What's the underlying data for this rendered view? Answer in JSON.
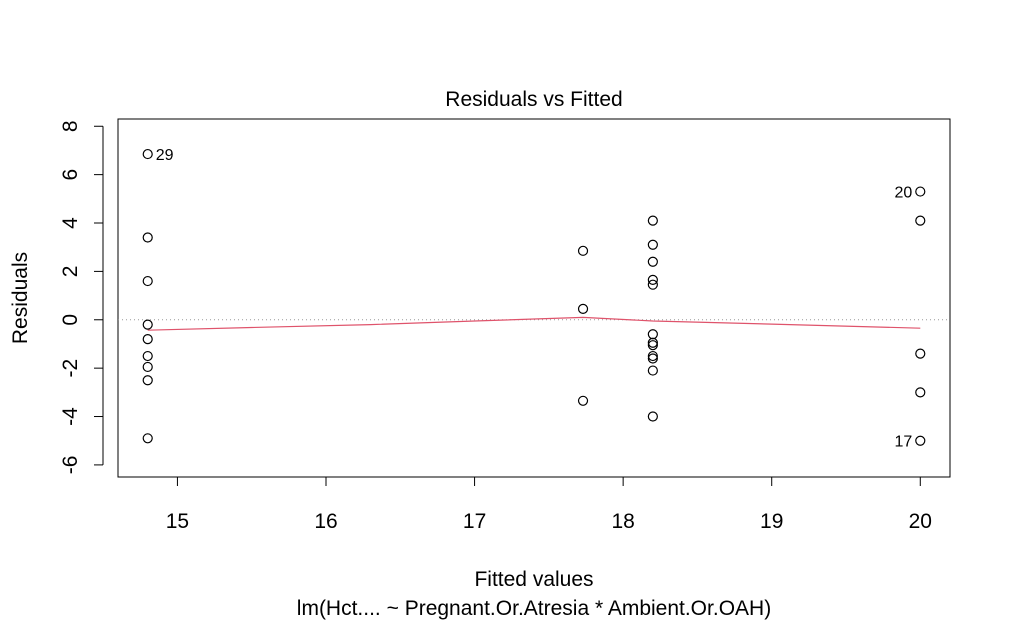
{
  "chart_data": {
    "type": "scatter",
    "title": "Residuals vs Fitted",
    "xlabel": "Fitted values",
    "subtitle": "lm(Hct.... ~ Pregnant.Or.Atresia * Ambient.Or.OAH)",
    "ylabel": "Residuals",
    "xlim": [
      14.6,
      20.2
    ],
    "ylim": [
      -6.5,
      8.3
    ],
    "x_ticks": [
      15,
      16,
      17,
      18,
      19,
      20
    ],
    "y_ticks": [
      -6,
      -4,
      -2,
      0,
      2,
      4,
      6,
      8
    ],
    "points": [
      {
        "x": 14.8,
        "y": 6.85,
        "label": "29"
      },
      {
        "x": 14.8,
        "y": 3.4
      },
      {
        "x": 14.8,
        "y": 1.6
      },
      {
        "x": 14.8,
        "y": -0.2
      },
      {
        "x": 14.8,
        "y": -0.8
      },
      {
        "x": 14.8,
        "y": -1.5
      },
      {
        "x": 14.8,
        "y": -1.95
      },
      {
        "x": 14.8,
        "y": -2.5
      },
      {
        "x": 14.8,
        "y": -4.9
      },
      {
        "x": 17.73,
        "y": 2.85
      },
      {
        "x": 17.73,
        "y": 0.45
      },
      {
        "x": 17.73,
        "y": -3.35
      },
      {
        "x": 18.2,
        "y": 4.1
      },
      {
        "x": 18.2,
        "y": 3.1
      },
      {
        "x": 18.2,
        "y": 2.4
      },
      {
        "x": 18.2,
        "y": 1.65
      },
      {
        "x": 18.2,
        "y": 1.45
      },
      {
        "x": 18.2,
        "y": -0.6
      },
      {
        "x": 18.2,
        "y": -0.95
      },
      {
        "x": 18.2,
        "y": -1.05
      },
      {
        "x": 18.2,
        "y": -1.5
      },
      {
        "x": 18.2,
        "y": -1.6
      },
      {
        "x": 18.2,
        "y": -2.1
      },
      {
        "x": 18.2,
        "y": -4.0
      },
      {
        "x": 20.0,
        "y": 5.3,
        "label": "20"
      },
      {
        "x": 20.0,
        "y": 4.1
      },
      {
        "x": 20.0,
        "y": -1.4
      },
      {
        "x": 20.0,
        "y": -3.0
      },
      {
        "x": 20.0,
        "y": -5.0,
        "label": "17"
      }
    ],
    "smoother": [
      {
        "x": 14.8,
        "y": -0.43
      },
      {
        "x": 15.5,
        "y": -0.32
      },
      {
        "x": 16.3,
        "y": -0.2
      },
      {
        "x": 17.0,
        "y": -0.05
      },
      {
        "x": 17.73,
        "y": 0.1
      },
      {
        "x": 18.2,
        "y": -0.05
      },
      {
        "x": 19.0,
        "y": -0.18
      },
      {
        "x": 20.0,
        "y": -0.35
      }
    ],
    "reference_line": 0,
    "colors": {
      "points": "#000000",
      "smoother": "#DF536B",
      "reference_line": "#999999",
      "axes": "#000000"
    },
    "grid": false
  }
}
